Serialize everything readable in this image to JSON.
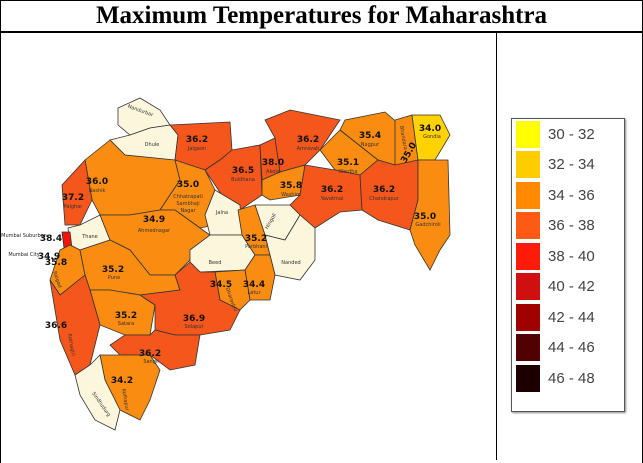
{
  "title": "Maximum Temperatures for Maharashtra",
  "colors": {
    "cream": "#fcf6dc",
    "t32_34": "#ffd200",
    "t34_36": "#fb8c12",
    "t36_38": "#f4561c",
    "t38_40": "#f5140c"
  },
  "districts": {
    "nandurbar": {
      "name": "Nandurbar"
    },
    "dhule": {
      "name": "Dhule"
    },
    "jalgaon": {
      "name": "Jalgaon",
      "temp": "36.2"
    },
    "buldhana": {
      "name": "Buldhana",
      "temp": "36.5"
    },
    "akola": {
      "name": "Akola",
      "temp": "38.0"
    },
    "amravati": {
      "name": "Amravati",
      "temp": "36.2"
    },
    "washim": {
      "name": "Washim",
      "temp": "35.8"
    },
    "nagpur": {
      "name": "Nagpur",
      "temp": "35.4"
    },
    "wardha": {
      "name": "Wardha",
      "temp": "35.1"
    },
    "bhandara": {
      "name": "Bhandara",
      "temp": "35.0"
    },
    "gondia": {
      "name": "Gondia",
      "temp": "34.0"
    },
    "yavatmal": {
      "name": "Yavatmal",
      "temp": "36.2"
    },
    "chandrapur": {
      "name": "Chandrapur",
      "temp": "36.2"
    },
    "gadchiroli": {
      "name": "Gadchiroli",
      "temp": "35.0"
    },
    "nashik": {
      "name": "Nashik",
      "temp": "36.0"
    },
    "palghar": {
      "name": "Palghar",
      "temp": "37.2"
    },
    "thane": {
      "name": "Thane"
    },
    "mumbai_suburban": {
      "name": "Mumbai Suburban",
      "temp": "38.4"
    },
    "mumbai_city": {
      "name": "Mumbai City",
      "temp": "34.9"
    },
    "csn": {
      "name1": "Chhatrapati",
      "name2": "Sambhaji",
      "name3": "Nagar",
      "temp": "35.0"
    },
    "jalna": {
      "name": "Jalna"
    },
    "ahmednagar": {
      "name": "Ahmednagar",
      "temp": "34.9"
    },
    "hingoli": {
      "name": "Hingoli"
    },
    "parbhani": {
      "name": "Parbhani",
      "temp": "35.2"
    },
    "nanded": {
      "name": "Nanded"
    },
    "beed": {
      "name": "Beed"
    },
    "raigad": {
      "name": "Raigad",
      "temp": "35.8"
    },
    "pune": {
      "name": "Pune",
      "temp": "35.2"
    },
    "latur": {
      "name": "Latur",
      "temp": "34.4"
    },
    "dharashiv": {
      "name": "Dharashiv",
      "temp": "34.5"
    },
    "satara": {
      "name": "Satara",
      "temp": "35.2"
    },
    "solapur": {
      "name": "Solapur",
      "temp": "36.9"
    },
    "ratnagiri": {
      "name": "Ratnagiri",
      "temp": "36.6"
    },
    "sangli": {
      "name": "Sangli",
      "temp": "36.2"
    },
    "kolhapur": {
      "name": "Kolhapur",
      "temp": "34.2"
    },
    "sindhudurg": {
      "name": "Sindhudurg"
    }
  },
  "legend": [
    {
      "label": "30 - 32",
      "color": "#ffff00"
    },
    {
      "label": "32 - 34",
      "color": "#ffcc00"
    },
    {
      "label": "34 - 36",
      "color": "#ff8a00"
    },
    {
      "label": "36 - 38",
      "color": "#ff5a14"
    },
    {
      "label": "38 - 40",
      "color": "#ff1a0a"
    },
    {
      "label": "40 - 42",
      "color": "#d01010"
    },
    {
      "label": "42 - 44",
      "color": "#a00000"
    },
    {
      "label": "44 - 46",
      "color": "#500000"
    },
    {
      "label": "46 - 48",
      "color": "#1c0000"
    }
  ]
}
